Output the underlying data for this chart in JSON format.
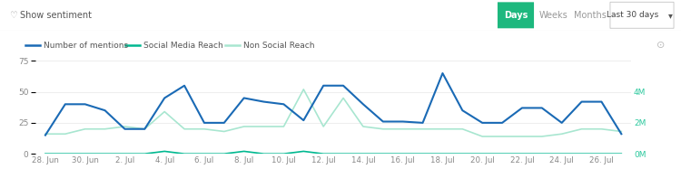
{
  "x_labels": [
    "28. Jun",
    "30. Jun",
    "2. Jul",
    "4. Jul",
    "6. Jul",
    "8. Jul",
    "10. Jul",
    "12. Jul",
    "14. Jul",
    "16. Jul",
    "18. Jul",
    "20. Jul",
    "22. Jul",
    "24. Jul",
    "26. Jul"
  ],
  "mentions": [
    15,
    40,
    40,
    35,
    20,
    20,
    45,
    55,
    25,
    25,
    45,
    42,
    40,
    27,
    55,
    55,
    40,
    26,
    26,
    25,
    65,
    35,
    25,
    25,
    37,
    37,
    25,
    42,
    42,
    16
  ],
  "social_reach": [
    0,
    0,
    0,
    0,
    0,
    0,
    2,
    0,
    0,
    0,
    2,
    0,
    0,
    2,
    0,
    0,
    0,
    0,
    0,
    0,
    0,
    0,
    0,
    0,
    0,
    0,
    0,
    0,
    0,
    0
  ],
  "non_social_reach": [
    16,
    16,
    20,
    20,
    22,
    20,
    34,
    20,
    20,
    18,
    22,
    22,
    22,
    52,
    22,
    45,
    22,
    20,
    20,
    20,
    20,
    20,
    14,
    14,
    14,
    14,
    16,
    20,
    20,
    18
  ],
  "mentions_color": "#1a6ab5",
  "social_reach_color": "#00b890",
  "non_social_reach_color": "#a8e6d0",
  "bg_color": "#ffffff",
  "grid_color": "#eeeeee",
  "left_yticks": [
    0,
    25,
    50,
    75
  ],
  "right_yticks_labels": [
    "0M",
    "2M",
    "4M"
  ],
  "legend_labels": [
    "Number of mentions",
    "Social Media Reach",
    "Non Social Reach"
  ],
  "days_btn_color": "#1db87e",
  "accent_color": "#2dc99e"
}
